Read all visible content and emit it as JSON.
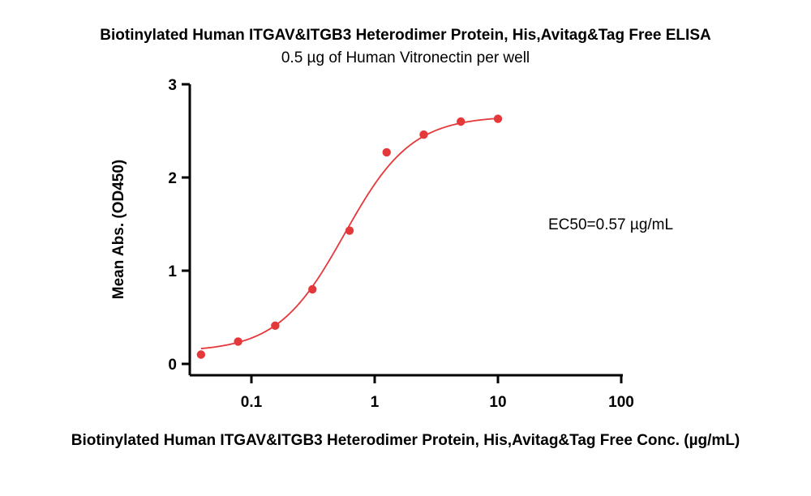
{
  "chart_data": {
    "type": "scatter",
    "title": "Biotinylated Human ITGAV&ITGB3 Heterodimer Protein, His,Avitag&Tag Free ELISA",
    "subtitle": "0.5 µg of Human Vitronectin per well",
    "xlabel": "Biotinylated Human ITGAV&ITGB3 Heterodimer Protein, His,Avitag&Tag Free Conc. (µg/mL)",
    "ylabel": "Mean Abs. (OD450)",
    "xscale": "log",
    "xlim": [
      0.035,
      100
    ],
    "ylim": [
      -0.1,
      3
    ],
    "xticks": [
      0.1,
      1,
      10,
      100
    ],
    "xtick_labels": [
      "0.1",
      "1",
      "10",
      "100"
    ],
    "yticks": [
      0,
      1,
      2,
      3
    ],
    "ytick_labels": [
      "0",
      "1",
      "2",
      "3"
    ],
    "grid": false,
    "series": [
      {
        "x": [
          0.039,
          0.078,
          0.156,
          0.3125,
          0.625,
          1.25,
          2.5,
          5,
          10
        ],
        "y": [
          0.1,
          0.24,
          0.41,
          0.8,
          1.43,
          2.27,
          2.46,
          2.6,
          2.63
        ],
        "color": "#e5383b",
        "fit": {
          "model": "4PL",
          "bottom": 0.13,
          "top": 2.66,
          "ec50": 0.57,
          "hill": 1.6,
          "x_range": [
            0.039,
            10
          ]
        }
      }
    ],
    "annotations": [
      "EC50=0.57 µg/mL"
    ]
  }
}
